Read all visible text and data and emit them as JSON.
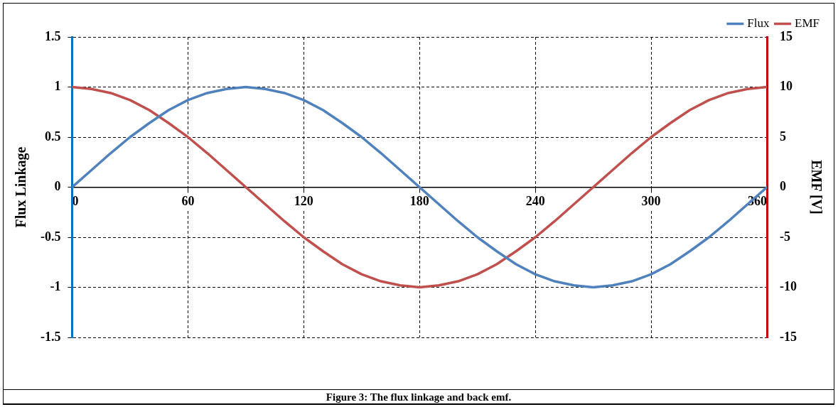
{
  "chart_data": {
    "type": "line",
    "ylabel": "Flux Linkage",
    "y2label": "EMF [V]",
    "x": [
      0,
      10,
      20,
      30,
      40,
      50,
      60,
      70,
      80,
      90,
      100,
      110,
      120,
      130,
      140,
      150,
      160,
      170,
      180,
      190,
      200,
      210,
      220,
      230,
      240,
      250,
      260,
      270,
      280,
      290,
      300,
      310,
      320,
      330,
      340,
      350,
      360
    ],
    "series": [
      {
        "name": "Flux",
        "color": "#4f81bd",
        "values": [
          0,
          0.17,
          0.34,
          0.5,
          0.64,
          0.77,
          0.87,
          0.94,
          0.98,
          1,
          0.98,
          0.94,
          0.87,
          0.77,
          0.64,
          0.5,
          0.34,
          0.17,
          0,
          -0.17,
          -0.34,
          -0.5,
          -0.64,
          -0.77,
          -0.87,
          -0.94,
          -0.98,
          -1,
          -0.98,
          -0.94,
          -0.87,
          -0.77,
          -0.64,
          -0.5,
          -0.34,
          -0.17,
          0
        ]
      },
      {
        "name": "EMF",
        "color": "#c0504d",
        "axis": "y2",
        "values": [
          10,
          9.8,
          9.4,
          8.7,
          7.7,
          6.4,
          5,
          3.4,
          1.7,
          0,
          -1.7,
          -3.4,
          -5,
          -6.4,
          -7.7,
          -8.7,
          -9.4,
          -9.8,
          -10,
          -9.8,
          -9.4,
          -8.7,
          -7.7,
          -6.4,
          -5,
          -3.4,
          -1.7,
          0,
          1.7,
          3.4,
          5,
          6.4,
          7.7,
          8.7,
          9.4,
          9.8,
          10
        ]
      }
    ],
    "xlim": [
      0,
      360
    ],
    "xticks": [
      0,
      60,
      120,
      180,
      240,
      300,
      360
    ],
    "ylim": [
      -1.5,
      1.5
    ],
    "yticks": [
      -1.5,
      -1,
      -0.5,
      0,
      0.5,
      1,
      1.5
    ],
    "y2lim": [
      -15,
      15
    ],
    "y2ticks": [
      -15,
      -10,
      -5,
      0,
      5,
      10,
      15
    ],
    "grid": true,
    "legend": "top right",
    "marker": "none",
    "line_style": "solid",
    "annotations": [
      "Figure 3: The flux linkage and back emf."
    ]
  }
}
